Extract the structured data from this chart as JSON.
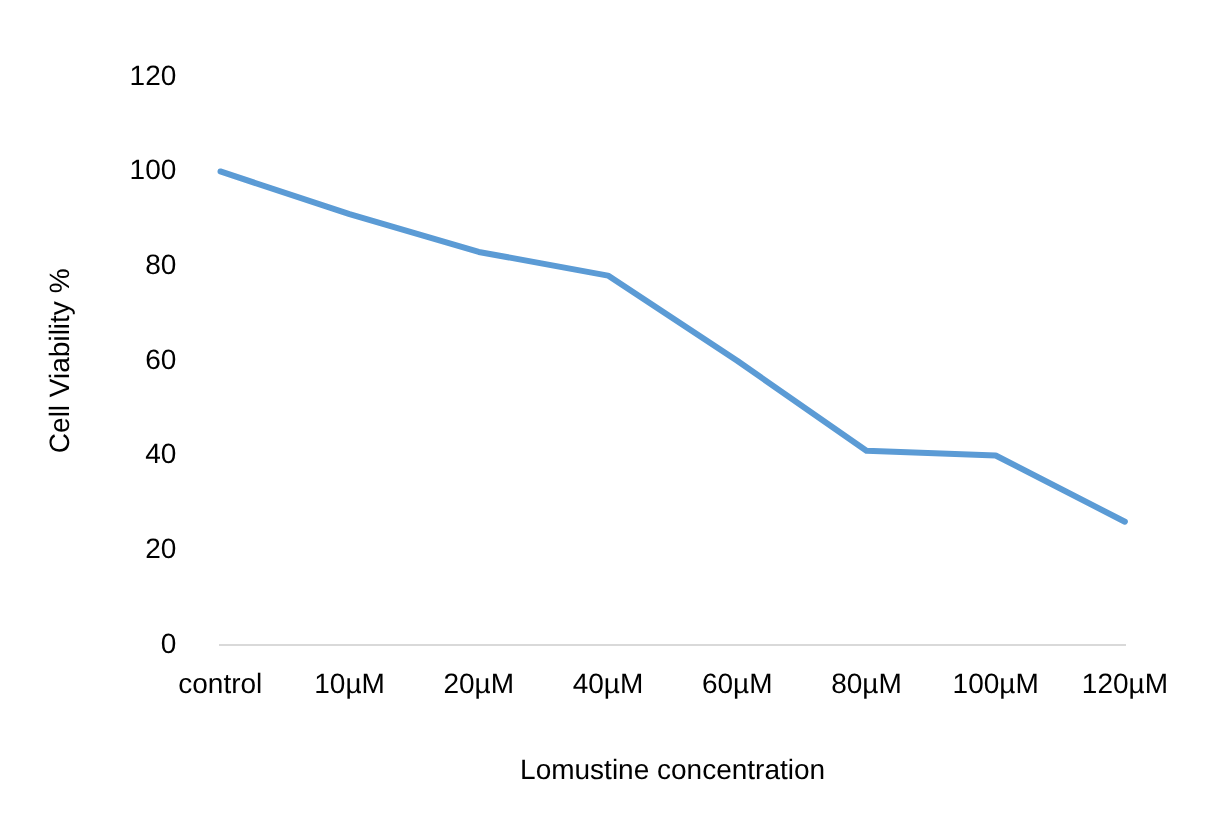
{
  "chart_data": {
    "type": "line",
    "xlabel": "Lomustine concentration",
    "ylabel": "Cell Viability %",
    "categories": [
      "control",
      "10µM",
      "20µM",
      "40µM",
      "60µM",
      "80µM",
      "100µM",
      "120µM"
    ],
    "series": [
      {
        "color": "#5b9bd5",
        "values": [
          100,
          91,
          83,
          78,
          60,
          41,
          40,
          26
        ]
      }
    ],
    "ylim": [
      0,
      120
    ],
    "yticks": [
      0,
      20,
      40,
      60,
      80,
      100,
      120
    ],
    "grid": false,
    "legend": false,
    "marker": "none",
    "line_style": "solid"
  }
}
